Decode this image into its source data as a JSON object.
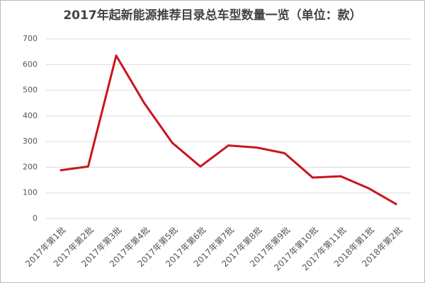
{
  "chart_data": {
    "type": "line",
    "title": "2017年起新能源推荐目录总车型数量一览（单位：款）",
    "categories": [
      "2017年第1批",
      "2017年第2批",
      "2017年第3批",
      "2017年第4批",
      "2017年第5批",
      "2017年第6批",
      "2017年第7批",
      "2017年第8批",
      "2017年第9批",
      "2017年第10批",
      "2017年第11批",
      "2018年第1批",
      "2018年第2批"
    ],
    "values": [
      188,
      203,
      635,
      450,
      295,
      203,
      285,
      277,
      255,
      160,
      165,
      118,
      55
    ],
    "color": "#c8161d",
    "ylim": [
      0,
      700
    ],
    "yticks": [
      0,
      100,
      200,
      300,
      400,
      500,
      600,
      700
    ],
    "grid": true
  }
}
